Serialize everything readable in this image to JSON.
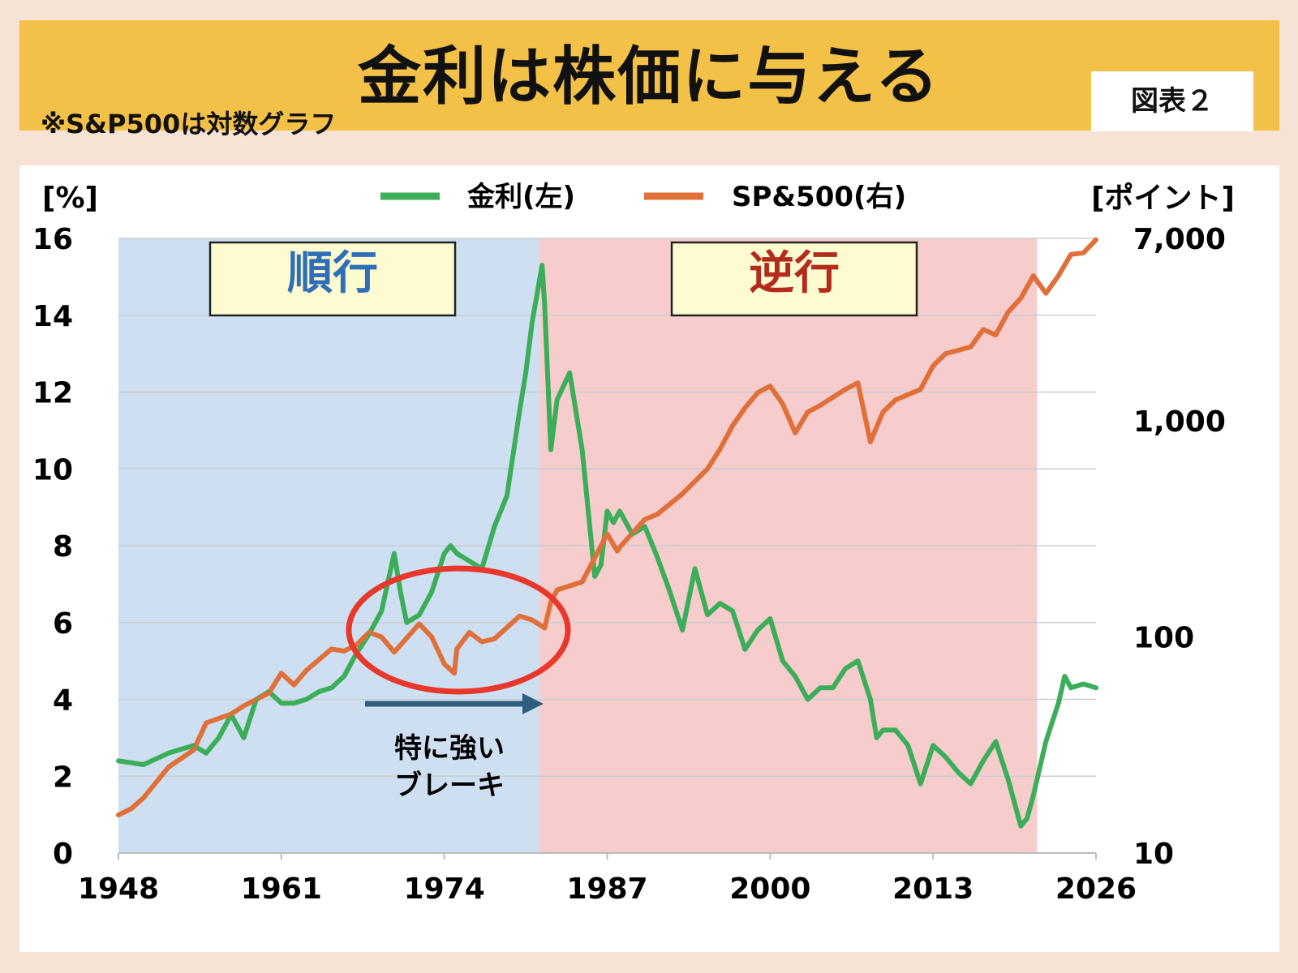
{
  "header": {
    "title": "金利は株価に与える",
    "subtitle": "※S&P500は対数グラフ",
    "figure_label": "図表２"
  },
  "colors": {
    "banner": "#f4c148",
    "rate_line": "#3cae5a",
    "sp_line": "#e0703a",
    "zone_concordant": "#cddff0",
    "zone_inverse": "#f6cccc",
    "zone_label_blue": "#2e6fb8",
    "zone_label_red": "#b32b1c",
    "circle": "#e8372b",
    "arrow": "#2f5f80"
  },
  "chart_data": {
    "type": "line",
    "x_ticks": [
      "1948",
      "1961",
      "1974",
      "1987",
      "2000",
      "2013",
      "2026"
    ],
    "xlim": [
      1948,
      2026
    ],
    "left_axis": {
      "unit": "[%]",
      "ticks": [
        "0",
        "2",
        "4",
        "6",
        "8",
        "10",
        "12",
        "14",
        "16"
      ],
      "ylim": [
        0,
        16
      ]
    },
    "right_axis": {
      "unit": "[ポイント]",
      "scale": "log",
      "ticks": [
        "10",
        "100",
        "1,000",
        "7,000"
      ],
      "tick_values": [
        10,
        100,
        1000,
        7000
      ],
      "ylim": [
        10,
        7000
      ]
    },
    "legend_position": "top-center",
    "grid": true,
    "series": [
      {
        "name": "金利(左)",
        "axis": "left",
        "x": [
          1948,
          1950,
          1952,
          1954,
          1955,
          1956,
          1957,
          1958,
          1959,
          1960,
          1961,
          1962,
          1963,
          1964,
          1965,
          1966,
          1967,
          1968,
          1969,
          1970,
          1970.5,
          1971,
          1972,
          1973,
          1974,
          1974.5,
          1975,
          1976,
          1977,
          1978,
          1979,
          1980,
          1980.5,
          1981,
          1981.8,
          1982,
          1982.5,
          1983,
          1984,
          1984.5,
          1985,
          1986,
          1986.5,
          1987,
          1987.5,
          1988,
          1989,
          1990,
          1991,
          1992,
          1993,
          1994,
          1995,
          1996,
          1997,
          1998,
          1999,
          2000,
          2001,
          2002,
          2003,
          2004,
          2005,
          2006,
          2007,
          2008,
          2008.5,
          2009,
          2010,
          2011,
          2012,
          2013,
          2014,
          2015,
          2016,
          2017,
          2018,
          2019,
          2020,
          2020.5,
          2021,
          2022,
          2023,
          2023.5,
          2024,
          2025,
          2026
        ],
        "y": [
          2.4,
          2.3,
          2.6,
          2.8,
          2.6,
          3.0,
          3.6,
          3.0,
          4.0,
          4.2,
          3.9,
          3.9,
          4.0,
          4.2,
          4.3,
          4.6,
          5.2,
          5.7,
          6.3,
          7.8,
          6.8,
          6.0,
          6.2,
          6.8,
          7.8,
          8.0,
          7.8,
          7.6,
          7.4,
          8.5,
          9.3,
          11.5,
          12.5,
          13.8,
          15.3,
          14.3,
          10.5,
          11.8,
          12.5,
          11.5,
          10.5,
          7.2,
          7.5,
          8.9,
          8.6,
          8.9,
          8.3,
          8.5,
          7.7,
          6.8,
          5.8,
          7.4,
          6.2,
          6.5,
          6.3,
          5.3,
          5.8,
          6.1,
          5.0,
          4.6,
          4.0,
          4.3,
          4.3,
          4.8,
          5.0,
          4.0,
          3.0,
          3.2,
          3.2,
          2.8,
          1.8,
          2.8,
          2.5,
          2.1,
          1.8,
          2.4,
          2.9,
          1.9,
          0.7,
          0.9,
          1.5,
          2.9,
          3.9,
          4.6,
          4.3,
          4.4,
          4.3
        ]
      },
      {
        "name": "SP&500(右)",
        "axis": "right",
        "x": [
          1948,
          1949,
          1950,
          1952,
          1954,
          1955,
          1957,
          1958,
          1960,
          1961,
          1962,
          1963,
          1965,
          1966,
          1967,
          1968,
          1969,
          1970,
          1972,
          1973,
          1974,
          1974.8,
          1975,
          1976,
          1977,
          1978,
          1980,
          1981,
          1982,
          1982.5,
          1983,
          1985,
          1987,
          1987.8,
          1988,
          1990,
          1991,
          1993,
          1995,
          1996,
          1997,
          1998,
          1999,
          2000,
          2001,
          2002,
          2003,
          2004,
          2006,
          2007,
          2008,
          2009,
          2010,
          2012,
          2013,
          2014,
          2016,
          2017,
          2018,
          2019,
          2020,
          2021,
          2022,
          2023,
          2024,
          2025,
          2026
        ],
        "y": [
          15,
          16,
          18,
          25,
          30,
          40,
          44,
          48,
          55,
          68,
          60,
          70,
          88,
          86,
          92,
          105,
          100,
          85,
          115,
          100,
          75,
          68,
          88,
          105,
          95,
          98,
          125,
          120,
          110,
          145,
          165,
          180,
          300,
          250,
          260,
          350,
          370,
          460,
          600,
          740,
          950,
          1150,
          1350,
          1450,
          1200,
          880,
          1100,
          1180,
          1400,
          1500,
          800,
          1100,
          1250,
          1400,
          1800,
          2050,
          2200,
          2650,
          2500,
          3200,
          3700,
          4700,
          3900,
          4700,
          5900,
          6000,
          6900
        ]
      }
    ]
  },
  "annotations": {
    "zone_left": "順行",
    "zone_right": "逆行",
    "arrow_label_line1": "特に強い",
    "arrow_label_line2": "ブレーキ"
  }
}
